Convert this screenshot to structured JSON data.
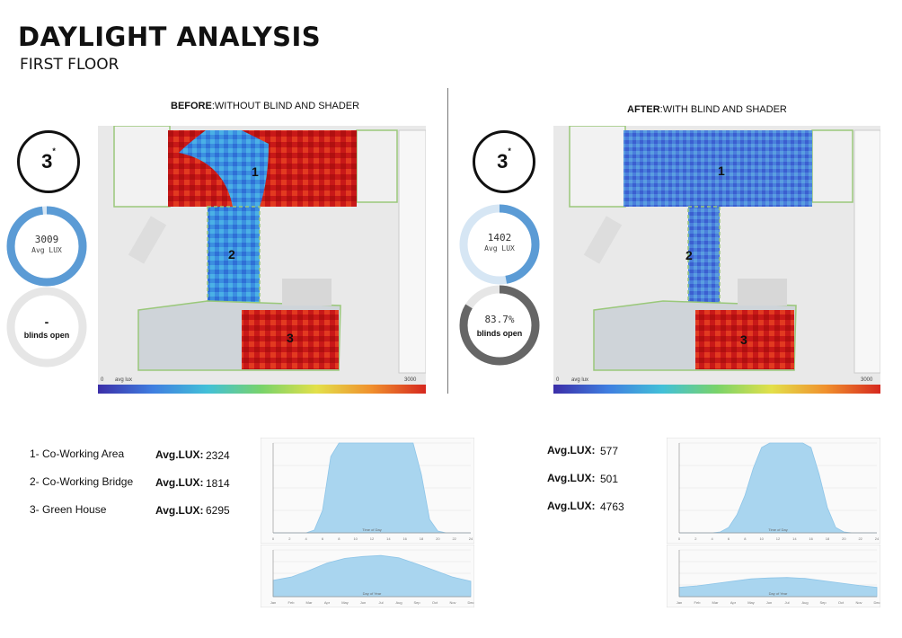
{
  "header": {
    "title": "DAYLIGHT ANALYSIS",
    "subtitle": "FIRST FLOOR"
  },
  "before": {
    "caption_bold": "BEFORE",
    "caption_rest": ":WITHOUT BLIND AND SHADER",
    "hours": "3",
    "hours_mark": "*",
    "lux_value": "3009",
    "lux_label": "Avg LUX",
    "lux_fraction": 0.98,
    "blinds_value": "-",
    "blinds_label": "blinds open",
    "blinds_fraction": 0,
    "scale_min": "0",
    "scale_label": "avg lux",
    "scale_max": "3000",
    "rooms": [
      "1",
      "2",
      "3"
    ]
  },
  "after": {
    "caption_bold": "AFTER",
    "caption_rest": ":WITH BLIND AND SHADER",
    "hours": "3",
    "hours_mark": "*",
    "lux_value": "1402",
    "lux_label": "Avg LUX",
    "lux_fraction": 0.47,
    "blinds_value": "83.7%",
    "blinds_label": "blinds open",
    "blinds_fraction": 0.837,
    "scale_min": "0",
    "scale_label": "avg lux",
    "scale_max": "3000",
    "rooms": [
      "1",
      "2",
      "3"
    ]
  },
  "zones": [
    {
      "name": "1- Co-Working Area",
      "before": "2324",
      "after": "577"
    },
    {
      "name": "2- Co-Working Bridge",
      "before": "1814",
      "after": "501"
    },
    {
      "name": "3- Green House",
      "before": "6295",
      "after": "4763"
    }
  ],
  "avg_label": "Avg.LUX:",
  "colors": {
    "ring": "#5b9bd5",
    "ring_light": "#d6e6f4",
    "ring_grey": "#e6e6e6",
    "ring_dark": "#666666",
    "chart_fill": "#a9d5ef"
  },
  "chart_data": [
    {
      "type": "area",
      "chart": "before-hourly",
      "x": [
        0,
        1,
        2,
        3,
        4,
        5,
        6,
        7,
        8,
        9,
        10,
        11,
        12,
        13,
        14,
        15,
        16,
        17,
        18,
        19,
        20,
        21,
        22,
        23,
        24
      ],
      "values": [
        0,
        0,
        0,
        0,
        0,
        30,
        250,
        850,
        1000,
        1000,
        1000,
        1000,
        1000,
        1000,
        1000,
        1000,
        1000,
        1000,
        650,
        150,
        20,
        0,
        0,
        0,
        0
      ],
      "ylim": [
        0,
        1000
      ],
      "xlabel": "Time of Day"
    },
    {
      "type": "area",
      "chart": "before-yearly",
      "categories": [
        "Jan",
        "Feb",
        "Mar",
        "Apr",
        "May",
        "Jun",
        "Jul",
        "Aug",
        "Sep",
        "Oct",
        "Nov",
        "Dec"
      ],
      "values": [
        350,
        420,
        560,
        720,
        820,
        860,
        880,
        830,
        700,
        560,
        420,
        330
      ],
      "ylim": [
        0,
        1000
      ],
      "xlabel": "Day of Year"
    },
    {
      "type": "area",
      "chart": "after-hourly",
      "x": [
        0,
        1,
        2,
        3,
        4,
        5,
        6,
        7,
        8,
        9,
        10,
        11,
        12,
        13,
        14,
        15,
        16,
        17,
        18,
        19,
        20,
        21,
        22,
        23,
        24
      ],
      "values": [
        0,
        0,
        0,
        0,
        0,
        10,
        60,
        200,
        420,
        720,
        950,
        1000,
        1000,
        1000,
        1000,
        1000,
        950,
        650,
        280,
        60,
        10,
        0,
        0,
        0,
        0
      ],
      "ylim": [
        0,
        1000
      ],
      "xlabel": "Time of Day"
    },
    {
      "type": "area",
      "chart": "after-yearly",
      "categories": [
        "Jan",
        "Feb",
        "Mar",
        "Apr",
        "May",
        "Jun",
        "Jul",
        "Aug",
        "Sep",
        "Oct",
        "Nov",
        "Dec"
      ],
      "values": [
        200,
        230,
        280,
        330,
        380,
        400,
        410,
        390,
        340,
        290,
        240,
        200
      ],
      "ylim": [
        0,
        1000
      ],
      "xlabel": "Day of Year"
    }
  ]
}
